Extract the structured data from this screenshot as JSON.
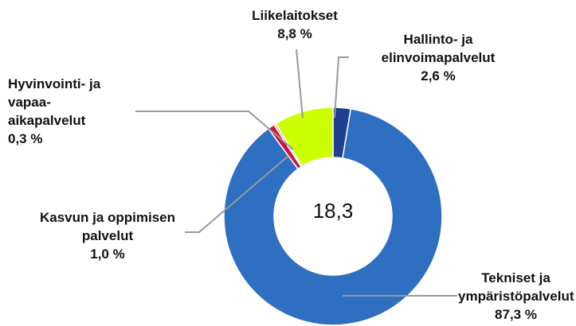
{
  "chart_data": {
    "type": "donut",
    "categories": [
      "Hallinto- ja elinvoimapalvelut",
      "Tekniset ja ympäristöpalvelut",
      "Kasvun ja oppimisen palvelut",
      "Hyvinvointi- ja vapaa-aikapalvelut",
      "Liikelaitokset"
    ],
    "values": [
      2.6,
      87.3,
      1.0,
      0.3,
      8.8
    ],
    "value_labels": [
      "2,6 %",
      "87,3 %",
      "1,0 %",
      "0,3 %",
      "8,8 %"
    ],
    "colors": [
      "#1f3f8f",
      "#2e6fc2",
      "#c8163f",
      "#e58ca0",
      "#ccff00"
    ],
    "center_label": "18,3"
  }
}
